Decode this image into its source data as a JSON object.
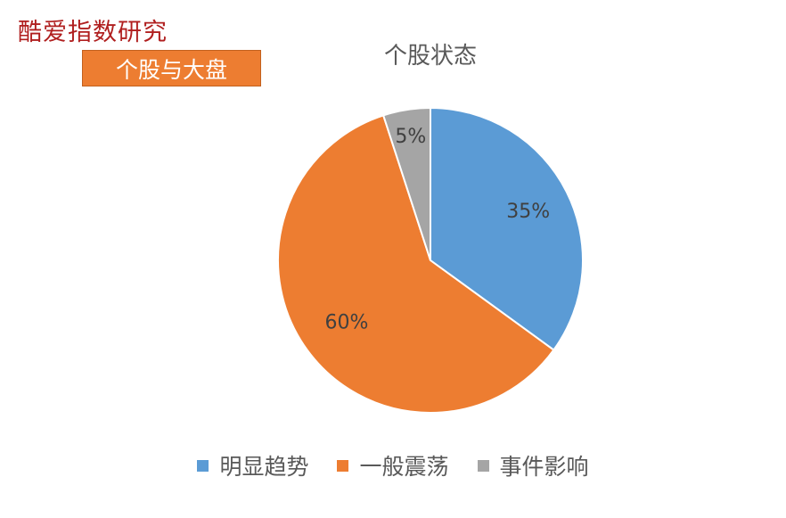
{
  "brand": "酷爱指数研究",
  "tag_label": "个股与大盘",
  "chart_data": {
    "type": "pie",
    "title": "个股状态",
    "categories": [
      "明显趋势",
      "一般震荡",
      "事件影响"
    ],
    "values": [
      35,
      60,
      5
    ],
    "labels": [
      "35%",
      "60%",
      "5%"
    ],
    "colors": [
      "#5b9bd5",
      "#ed7d31",
      "#a5a5a5"
    ],
    "legend_position": "bottom"
  }
}
